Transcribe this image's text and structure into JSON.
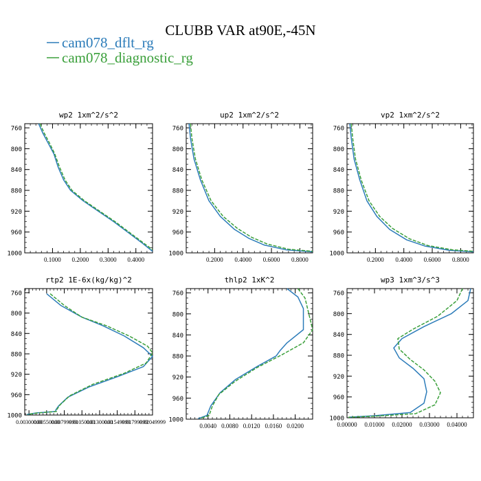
{
  "figure": {
    "title": "CLUBB VAR at90E,-45N",
    "legend": [
      {
        "label": "cam078_dflt_rg",
        "color": "#2b7bb9",
        "dash": "solid"
      },
      {
        "label": "cam078_diagnostic_rg",
        "color": "#3a9f3a",
        "dash": "dashed"
      }
    ]
  },
  "colors": {
    "series1": "#2b7bb9",
    "series2": "#3a9f3a",
    "axis": "#000000"
  },
  "chart_data": [
    {
      "type": "line",
      "title": "wp2  1xm^2/s^2",
      "xlim": [
        0.0,
        0.46
      ],
      "ylim": [
        1000,
        752
      ],
      "xticks": [
        0.1,
        0.2,
        0.3,
        0.4
      ],
      "xtick_labels": [
        "0.1000",
        "0.2000",
        "0.3000",
        "0.4000"
      ],
      "yticks": [
        760,
        800,
        840,
        880,
        920,
        960,
        1000
      ],
      "ytick_labels": [
        "760",
        "800",
        "840",
        "880",
        "920",
        "960",
        "1000"
      ],
      "series": [
        {
          "name": "cam078_dflt_rg",
          "points": [
            [
              0.05,
              752
            ],
            [
              0.065,
              770
            ],
            [
              0.085,
              790
            ],
            [
              0.105,
              810
            ],
            [
              0.12,
              835
            ],
            [
              0.14,
              860
            ],
            [
              0.165,
              880
            ],
            [
              0.21,
              900
            ],
            [
              0.265,
              920
            ],
            [
              0.32,
              940
            ],
            [
              0.37,
              960
            ],
            [
              0.42,
              980
            ],
            [
              0.46,
              997
            ]
          ]
        },
        {
          "name": "cam078_diagnostic_rg",
          "points": [
            [
              0.055,
              752
            ],
            [
              0.07,
              770
            ],
            [
              0.09,
              790
            ],
            [
              0.108,
              810
            ],
            [
              0.125,
              835
            ],
            [
              0.145,
              860
            ],
            [
              0.17,
              880
            ],
            [
              0.215,
              900
            ],
            [
              0.27,
              920
            ],
            [
              0.325,
              940
            ],
            [
              0.375,
              960
            ],
            [
              0.425,
              980
            ],
            [
              0.46,
              994
            ]
          ]
        }
      ]
    },
    {
      "type": "line",
      "title": "up2  1xm^2/s^2",
      "xlim": [
        0.0,
        0.89
      ],
      "ylim": [
        1000,
        752
      ],
      "xticks": [
        0.2,
        0.4,
        0.6,
        0.8
      ],
      "xtick_labels": [
        "0.2000",
        "0.4000",
        "0.6000",
        "0.8000"
      ],
      "yticks": [
        760,
        800,
        840,
        880,
        920,
        960,
        1000
      ],
      "ytick_labels": [
        "760",
        "800",
        "840",
        "880",
        "920",
        "960",
        "1000"
      ],
      "series": [
        {
          "name": "cam078_dflt_rg",
          "points": [
            [
              0.02,
              752
            ],
            [
              0.03,
              780
            ],
            [
              0.055,
              820
            ],
            [
              0.1,
              860
            ],
            [
              0.16,
              900
            ],
            [
              0.24,
              930
            ],
            [
              0.34,
              955
            ],
            [
              0.44,
              972
            ],
            [
              0.55,
              985
            ],
            [
              0.7,
              994
            ],
            [
              0.89,
              998
            ]
          ]
        },
        {
          "name": "cam078_diagnostic_rg",
          "points": [
            [
              0.03,
              752
            ],
            [
              0.04,
              780
            ],
            [
              0.065,
              820
            ],
            [
              0.11,
              860
            ],
            [
              0.175,
              900
            ],
            [
              0.26,
              930
            ],
            [
              0.36,
              953
            ],
            [
              0.46,
              970
            ],
            [
              0.57,
              983
            ],
            [
              0.72,
              993
            ],
            [
              0.89,
              997
            ]
          ]
        }
      ]
    },
    {
      "type": "line",
      "title": "vp2  1xm^2/s^2",
      "xlim": [
        0.0,
        0.89
      ],
      "ylim": [
        1000,
        752
      ],
      "xticks": [
        0.2,
        0.4,
        0.6,
        0.8
      ],
      "xtick_labels": [
        "0.2000",
        "0.4000",
        "0.6000",
        "0.8000"
      ],
      "yticks": [
        760,
        800,
        840,
        880,
        920,
        960,
        1000
      ],
      "ytick_labels": [
        "760",
        "800",
        "840",
        "880",
        "920",
        "960",
        "1000"
      ],
      "series": [
        {
          "name": "cam078_dflt_rg",
          "points": [
            [
              0.02,
              752
            ],
            [
              0.03,
              780
            ],
            [
              0.05,
              820
            ],
            [
              0.09,
              860
            ],
            [
              0.14,
              900
            ],
            [
              0.21,
              930
            ],
            [
              0.3,
              955
            ],
            [
              0.42,
              975
            ],
            [
              0.55,
              987
            ],
            [
              0.72,
              995
            ],
            [
              0.89,
              998
            ]
          ]
        },
        {
          "name": "cam078_diagnostic_rg",
          "points": [
            [
              0.03,
              752
            ],
            [
              0.04,
              780
            ],
            [
              0.06,
              820
            ],
            [
              0.1,
              860
            ],
            [
              0.155,
              900
            ],
            [
              0.23,
              930
            ],
            [
              0.32,
              953
            ],
            [
              0.44,
              973
            ],
            [
              0.57,
              986
            ],
            [
              0.74,
              994
            ],
            [
              0.89,
              997
            ]
          ]
        }
      ]
    },
    {
      "type": "line",
      "title": "rtp2  1E-6x(kg/kg)^2",
      "xlim": [
        0.0024,
        0.0205
      ],
      "ylim": [
        1000,
        752
      ],
      "xticks": [
        0.003,
        0.0055,
        0.008,
        0.0105,
        0.013,
        0.0155,
        0.018,
        0.0205
      ],
      "xtick_labels": [
        "0.00300000",
        "0.00550000",
        "0.00799999",
        "0.01050000",
        "0.01300000",
        "0.01549999",
        "0.01799999",
        "0.02049999"
      ],
      "yticks": [
        760,
        800,
        840,
        880,
        920,
        960,
        1000
      ],
      "ytick_labels": [
        "760",
        "800",
        "840",
        "880",
        "920",
        "960",
        "1000"
      ],
      "series": [
        {
          "name": "cam078_dflt_rg",
          "points": [
            [
              0.0055,
              762
            ],
            [
              0.0075,
              785
            ],
            [
              0.0105,
              808
            ],
            [
              0.0135,
              825
            ],
            [
              0.0165,
              845
            ],
            [
              0.0192,
              868
            ],
            [
              0.0205,
              885
            ],
            [
              0.0192,
              905
            ],
            [
              0.0155,
              925
            ],
            [
              0.0115,
              945
            ],
            [
              0.0085,
              965
            ],
            [
              0.0072,
              982
            ],
            [
              0.0068,
              990
            ],
            [
              0.0068,
              993
            ],
            [
              0.004,
              996
            ],
            [
              0.0027,
              999
            ]
          ]
        },
        {
          "name": "cam078_diagnostic_rg",
          "points": [
            [
              0.006,
              762
            ],
            [
              0.008,
              785
            ],
            [
              0.0105,
              808
            ],
            [
              0.014,
              825
            ],
            [
              0.0172,
              845
            ],
            [
              0.0198,
              865
            ],
            [
              0.0205,
              878
            ],
            [
              0.0196,
              898
            ],
            [
              0.0165,
              918
            ],
            [
              0.012,
              940
            ],
            [
              0.0088,
              962
            ],
            [
              0.0074,
              980
            ],
            [
              0.0069,
              990
            ],
            [
              0.0069,
              993
            ],
            [
              0.0042,
              996
            ],
            [
              0.0028,
              999
            ]
          ]
        }
      ]
    },
    {
      "type": "line",
      "title": "thlp2  1xK^2",
      "xlim": [
        0.0,
        0.0232
      ],
      "ylim": [
        1000,
        752
      ],
      "xticks": [
        0.004,
        0.008,
        0.012,
        0.016,
        0.02
      ],
      "xtick_labels": [
        "0.0040",
        "0.0080",
        "0.0120",
        "0.0160",
        "0.0200"
      ],
      "yticks": [
        760,
        800,
        840,
        880,
        920,
        960,
        1000
      ],
      "ytick_labels": [
        "760",
        "800",
        "840",
        "880",
        "920",
        "960",
        "1000"
      ],
      "series": [
        {
          "name": "cam078_dflt_rg",
          "points": [
            [
              0.0185,
              752
            ],
            [
              0.0205,
              768
            ],
            [
              0.0215,
              790
            ],
            [
              0.0215,
              830
            ],
            [
              0.0185,
              855
            ],
            [
              0.0172,
              870
            ],
            [
              0.0165,
              880
            ],
            [
              0.013,
              900
            ],
            [
              0.009,
              925
            ],
            [
              0.0062,
              950
            ],
            [
              0.0045,
              975
            ],
            [
              0.0038,
              993
            ],
            [
              0.0022,
              999
            ]
          ]
        },
        {
          "name": "cam078_diagnostic_rg",
          "points": [
            [
              0.0205,
              752
            ],
            [
              0.0218,
              770
            ],
            [
              0.0225,
              800
            ],
            [
              0.0232,
              830
            ],
            [
              0.0215,
              855
            ],
            [
              0.0175,
              878
            ],
            [
              0.013,
              902
            ],
            [
              0.009,
              928
            ],
            [
              0.006,
              953
            ],
            [
              0.0048,
              975
            ],
            [
              0.0042,
              993
            ],
            [
              0.0025,
              999
            ]
          ]
        }
      ]
    },
    {
      "type": "line",
      "title": "wp3  1xm^3/s^3",
      "xlim": [
        0.0,
        0.046
      ],
      "ylim": [
        1000,
        752
      ],
      "xticks": [
        0.0,
        0.01,
        0.02,
        0.03,
        0.04
      ],
      "xtick_labels": [
        "0.00000",
        "0.01000",
        "0.02000",
        "0.03000",
        "0.04000"
      ],
      "yticks": [
        760,
        800,
        840,
        880,
        920,
        960,
        1000
      ],
      "ytick_labels": [
        "760",
        "800",
        "840",
        "880",
        "920",
        "960",
        "1000"
      ],
      "series": [
        {
          "name": "cam078_dflt_rg",
          "points": [
            [
              0.045,
              752
            ],
            [
              0.044,
              775
            ],
            [
              0.038,
              800
            ],
            [
              0.028,
              825
            ],
            [
              0.02,
              848
            ],
            [
              0.017,
              866
            ],
            [
              0.019,
              885
            ],
            [
              0.024,
              905
            ],
            [
              0.028,
              925
            ],
            [
              0.029,
              950
            ],
            [
              0.028,
              972
            ],
            [
              0.023,
              990
            ],
            [
              0.01,
              996
            ],
            [
              0.0005,
              999
            ]
          ]
        },
        {
          "name": "cam078_diagnostic_rg",
          "points": [
            [
              0.042,
              752
            ],
            [
              0.04,
              775
            ],
            [
              0.033,
              805
            ],
            [
              0.024,
              830
            ],
            [
              0.0185,
              848
            ],
            [
              0.019,
              868
            ],
            [
              0.023,
              888
            ],
            [
              0.028,
              908
            ],
            [
              0.032,
              930
            ],
            [
              0.034,
              952
            ],
            [
              0.032,
              975
            ],
            [
              0.025,
              992
            ],
            [
              0.01,
              997
            ],
            [
              0.0005,
              999
            ]
          ]
        }
      ]
    }
  ]
}
